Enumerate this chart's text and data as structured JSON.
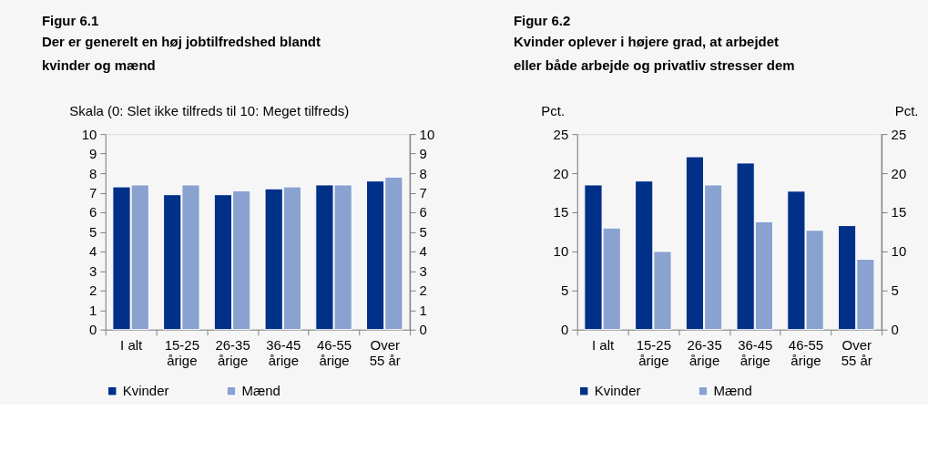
{
  "chart_data": [
    {
      "type": "bar",
      "title": "Figur 6.1",
      "subtitle": "Der er generelt en høj jobtilfredshed blandt kvinder og mænd",
      "ylabel": "Skala (0: Slet ikke tilfreds til 10: Meget tilfreds)",
      "categories": [
        "I alt",
        "15-25\nårige",
        "26-35\nårige",
        "36-45\nårige",
        "46-55\nårige",
        "Over\n55 år"
      ],
      "series": [
        {
          "name": "Kvinder",
          "color": "#003087",
          "values": [
            7.3,
            6.9,
            6.9,
            7.2,
            7.4,
            7.6
          ]
        },
        {
          "name": "Mænd",
          "color": "#8aa2d0",
          "values": [
            7.4,
            7.4,
            7.1,
            7.3,
            7.4,
            7.8
          ]
        }
      ],
      "ylim": [
        0,
        10
      ],
      "yticks": [
        0,
        1,
        2,
        3,
        4,
        5,
        6,
        7,
        8,
        9,
        10
      ],
      "y2lim": [
        0,
        10
      ],
      "y2ticks": [
        0,
        1,
        2,
        3,
        4,
        5,
        6,
        7,
        8,
        9,
        10
      ],
      "legend": "bottom"
    },
    {
      "type": "bar",
      "title": "Figur 6.2",
      "subtitle": "Kvinder oplever i højere grad, at arbejdet eller både arbejde og privatliv stresser dem",
      "ylabel": "Pct.",
      "y2label": "Pct.",
      "categories": [
        "I alt",
        "15-25\nårige",
        "26-35\nårige",
        "36-45\nårige",
        "46-55\nårige",
        "Over\n55 år"
      ],
      "series": [
        {
          "name": "Kvinder",
          "color": "#003087",
          "values": [
            18.5,
            19.0,
            22.1,
            21.3,
            17.7,
            13.3
          ]
        },
        {
          "name": "Mænd",
          "color": "#8aa2d0",
          "values": [
            13.0,
            10.0,
            18.5,
            13.8,
            12.7,
            9.0
          ]
        }
      ],
      "ylim": [
        0,
        25
      ],
      "yticks": [
        0,
        5,
        10,
        15,
        20,
        25
      ],
      "y2lim": [
        0,
        25
      ],
      "y2ticks": [
        0,
        5,
        10,
        15,
        20,
        25
      ],
      "legend": "bottom"
    }
  ]
}
